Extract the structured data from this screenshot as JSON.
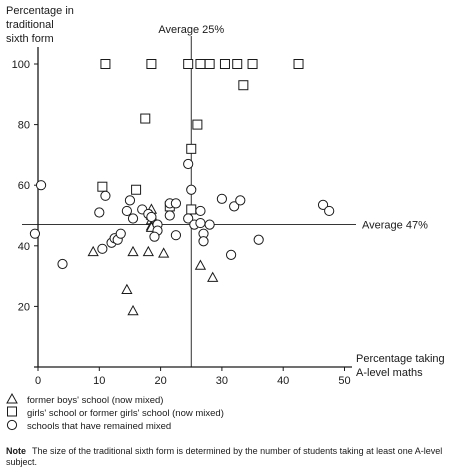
{
  "chart_data": {
    "type": "scatter",
    "xlabel": [
      "Percentage taking",
      "A-level maths"
    ],
    "ylabel": [
      "Percentage in",
      "traditional",
      "sixth form"
    ],
    "xlim": [
      0,
      50
    ],
    "ylim": [
      0,
      100
    ],
    "x_ticks": [
      0,
      10,
      20,
      30,
      40,
      50
    ],
    "y_ticks": [
      20,
      40,
      60,
      80,
      100
    ],
    "reference_lines": {
      "vertical": {
        "value": 25,
        "label": "Average 25%"
      },
      "horizontal": {
        "value": 47,
        "label": "Average 47%"
      }
    },
    "series": [
      {
        "name": "former boys' school (now mixed)",
        "marker": "triangle",
        "points": [
          [
            18.5,
            52
          ],
          [
            18.5,
            50
          ],
          [
            18.5,
            48.5
          ],
          [
            18.5,
            46.5
          ],
          [
            18.5,
            46
          ],
          [
            9,
            38
          ],
          [
            15.5,
            38
          ],
          [
            18,
            38
          ],
          [
            20.5,
            37.5
          ],
          [
            14.5,
            25.5
          ],
          [
            15.5,
            18.5
          ],
          [
            26.5,
            33.5
          ],
          [
            28.5,
            29.5
          ]
        ]
      },
      {
        "name": "girls' school or former girls' school (now mixed)",
        "marker": "square",
        "points": [
          [
            11,
            100
          ],
          [
            18.5,
            100
          ],
          [
            24.5,
            100
          ],
          [
            26.5,
            100
          ],
          [
            28,
            100
          ],
          [
            30.5,
            100
          ],
          [
            32.5,
            100
          ],
          [
            35,
            100
          ],
          [
            42.5,
            100
          ],
          [
            33.5,
            93
          ],
          [
            17.5,
            82
          ],
          [
            26,
            80
          ],
          [
            25,
            72
          ],
          [
            10.5,
            59.5
          ],
          [
            16,
            58.5
          ],
          [
            25,
            52
          ],
          [
            21.5,
            53
          ]
        ]
      },
      {
        "name": "schools that have remained mixed",
        "marker": "circle",
        "points": [
          [
            -0.5,
            44
          ],
          [
            0.5,
            60
          ],
          [
            4,
            34
          ],
          [
            10,
            51
          ],
          [
            11,
            56.5
          ],
          [
            10.5,
            39
          ],
          [
            12,
            41
          ],
          [
            12.5,
            42.5
          ],
          [
            13,
            42
          ],
          [
            13.5,
            44
          ],
          [
            14.5,
            51.5
          ],
          [
            15,
            55
          ],
          [
            15.5,
            49
          ],
          [
            17,
            52
          ],
          [
            18,
            50.5
          ],
          [
            18.5,
            49.5
          ],
          [
            19.5,
            47
          ],
          [
            19.5,
            45
          ],
          [
            19,
            43
          ],
          [
            21.5,
            54
          ],
          [
            22.5,
            54
          ],
          [
            21.5,
            50
          ],
          [
            22.5,
            43.5
          ],
          [
            24.5,
            67
          ],
          [
            24.5,
            49
          ],
          [
            25,
            58.5
          ],
          [
            25.5,
            47
          ],
          [
            26.5,
            51.5
          ],
          [
            26.5,
            47.5
          ],
          [
            27,
            44
          ],
          [
            27,
            41.5
          ],
          [
            28,
            47
          ],
          [
            30,
            55.5
          ],
          [
            31.5,
            37
          ],
          [
            32,
            53
          ],
          [
            33,
            55
          ],
          [
            36,
            42
          ],
          [
            46.5,
            53.5
          ],
          [
            47.5,
            51.5
          ]
        ]
      }
    ]
  },
  "legend": {
    "items": [
      {
        "symbol": "△",
        "label": "former boys' school (now mixed)"
      },
      {
        "symbol": "□",
        "label": "girls' school or former girls' school (now mixed)"
      },
      {
        "symbol": "○",
        "label": "schools that have remained mixed"
      }
    ]
  },
  "note": {
    "prefix": "Note",
    "text": "The size of the traditional sixth form is determined by the number of students taking at least one A-level subject."
  }
}
